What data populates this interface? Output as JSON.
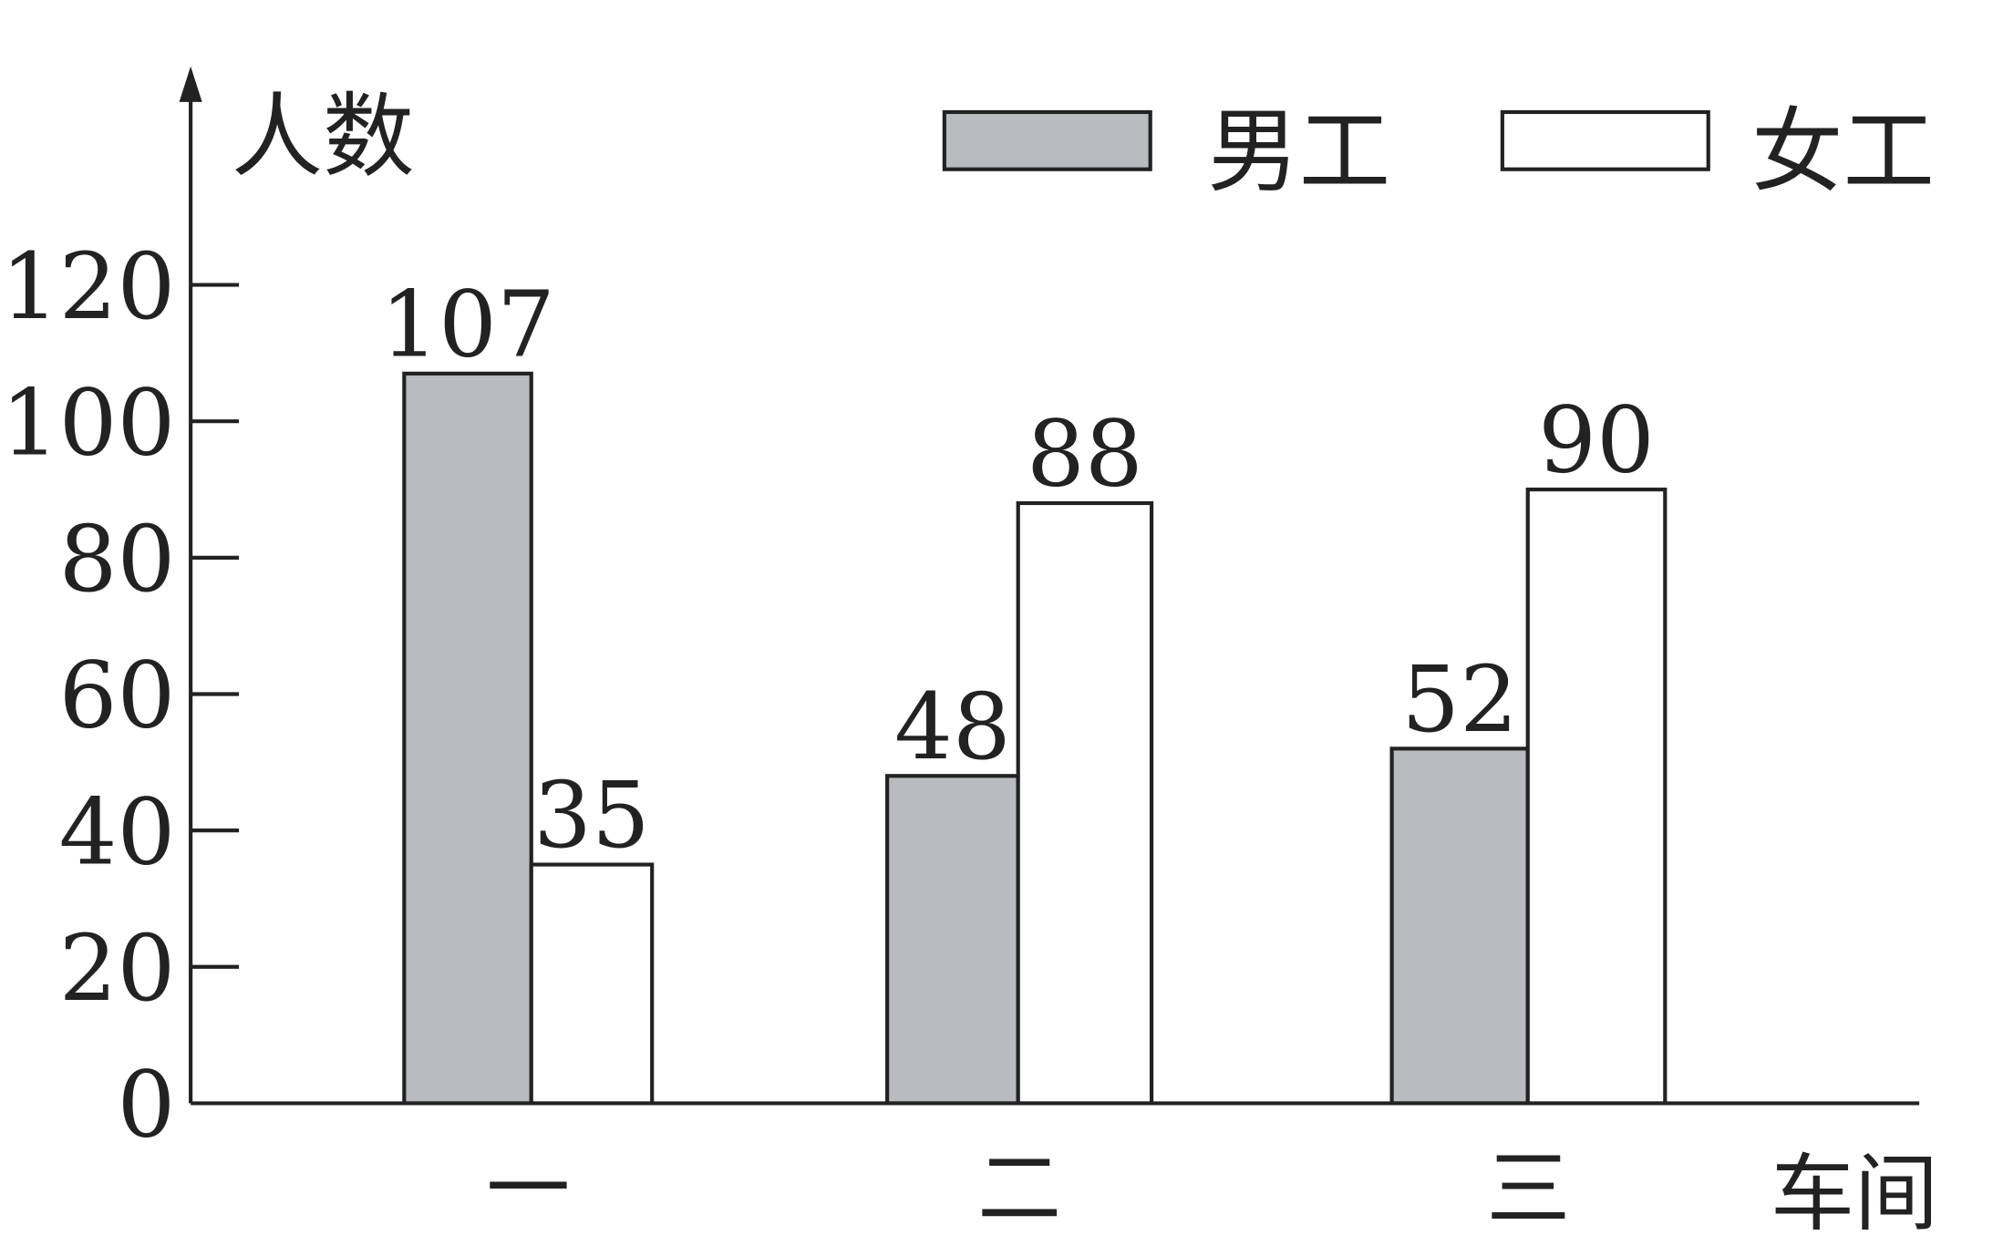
{
  "chart_data": {
    "type": "bar",
    "title": "",
    "xlabel": "车间",
    "ylabel": "人数",
    "categories": [
      "一",
      "二",
      "三"
    ],
    "series": [
      {
        "name": "男工",
        "values": [
          107,
          48,
          52
        ],
        "color": "#b9bbbe"
      },
      {
        "name": "女工",
        "values": [
          35,
          88,
          90
        ],
        "color": "#ffffff"
      }
    ],
    "yticks": [
      0,
      20,
      40,
      60,
      80,
      100,
      120
    ],
    "ylim": [
      0,
      120
    ],
    "grid": false,
    "legend_position": "top-right",
    "data_labels": true
  }
}
